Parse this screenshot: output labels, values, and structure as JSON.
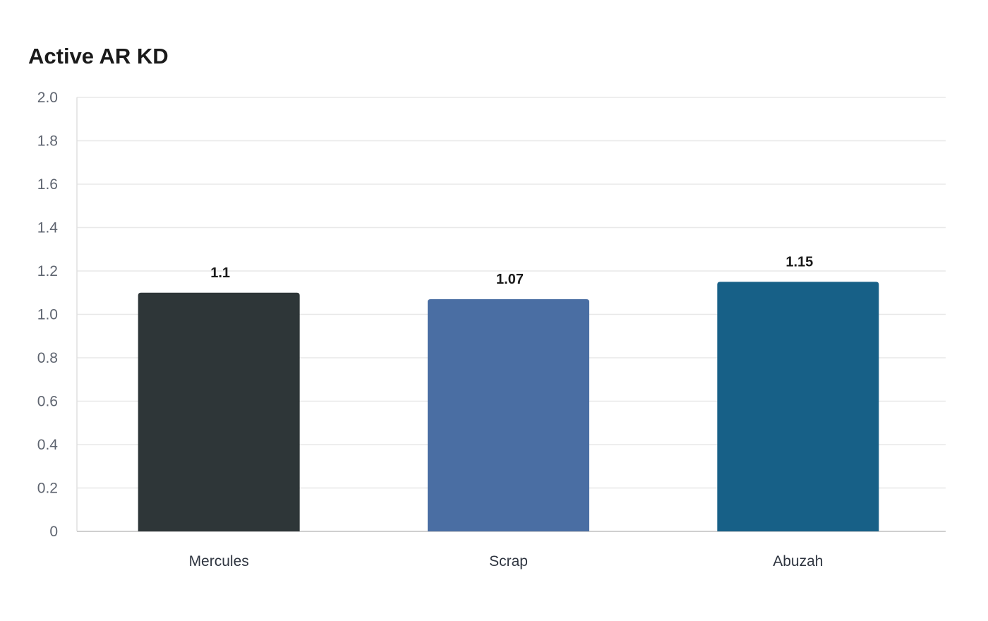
{
  "chart_data": {
    "type": "bar",
    "title": "Active AR KD",
    "xlabel": "",
    "ylabel": "",
    "categories": [
      "Mercules",
      "Scrap",
      "Abuzah"
    ],
    "values": [
      1.1,
      1.07,
      1.15
    ],
    "value_labels": [
      "1.1",
      "1.07",
      "1.15"
    ],
    "colors": [
      "#2e3638",
      "#4a6ea3",
      "#176087"
    ],
    "ylim": [
      0,
      2.0
    ],
    "yticks": [
      0,
      0.2,
      0.4,
      0.6,
      0.8,
      1.0,
      1.2,
      1.4,
      1.6,
      1.8,
      2.0
    ],
    "ytick_labels": [
      "0",
      "0.2",
      "0.4",
      "0.6",
      "0.8",
      "1.0",
      "1.2",
      "1.4",
      "1.6",
      "1.8",
      "2.0"
    ],
    "grid": true,
    "legend": "none"
  }
}
